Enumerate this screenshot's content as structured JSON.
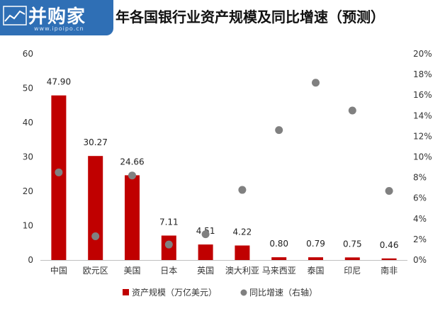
{
  "logo": {
    "text": "并购家",
    "url": "www.ipoipo.cn"
  },
  "chart_data": {
    "type": "bar",
    "title": "年各国银行业资产规模及同比增速（预测）",
    "categories": [
      "中国",
      "欧元区",
      "美国",
      "日本",
      "英国",
      "澳大利亚",
      "马来西亚",
      "泰国",
      "印尼",
      "南非"
    ],
    "series": [
      {
        "name": "资产规模（万亿美元）",
        "type": "bar",
        "axis": "left",
        "color": "#c00000",
        "values": [
          47.9,
          30.27,
          24.66,
          7.11,
          4.51,
          4.22,
          0.8,
          0.79,
          0.75,
          0.46
        ],
        "labels": [
          "47.90",
          "30.27",
          "24.66",
          "7.11",
          "4.51",
          "4.22",
          "0.80",
          "0.79",
          "0.75",
          "0.46"
        ]
      },
      {
        "name": "同比增速（右轴）",
        "type": "scatter",
        "axis": "right",
        "color": "#808080",
        "values": [
          8.5,
          2.3,
          8.2,
          1.5,
          2.5,
          6.8,
          12.6,
          17.2,
          14.5,
          6.7
        ]
      }
    ],
    "ylim": [
      0,
      60
    ],
    "y_ticks": [
      "0",
      "10",
      "20",
      "30",
      "40",
      "50",
      "60"
    ],
    "y2lim": [
      0,
      20
    ],
    "y2_ticks": [
      "0%",
      "2%",
      "4%",
      "6%",
      "8%",
      "10%",
      "12%",
      "14%",
      "16%",
      "18%",
      "20%"
    ],
    "grid": false,
    "legend": "bottom"
  }
}
